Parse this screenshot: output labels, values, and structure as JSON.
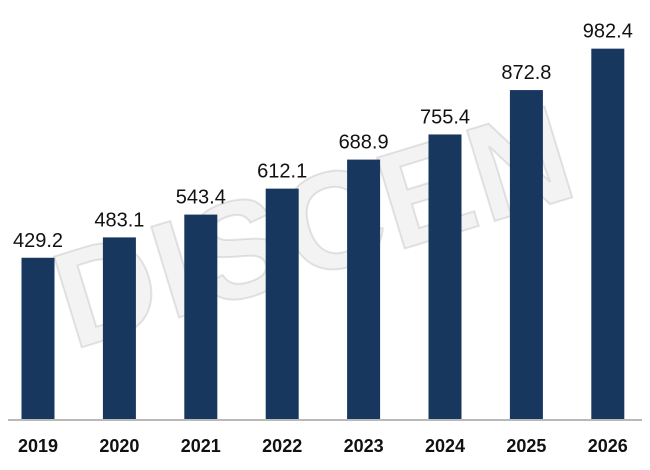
{
  "watermark": {
    "text": "DISCEN"
  },
  "chart_data": {
    "type": "bar",
    "categories": [
      "2019",
      "2020",
      "2021",
      "2022",
      "2023",
      "2024",
      "2025",
      "2026"
    ],
    "values": [
      429.2,
      483.1,
      543.4,
      612.1,
      688.9,
      755.4,
      872.8,
      982.4
    ],
    "value_labels": [
      "429.2",
      "483.1",
      "543.4",
      "612.1",
      "688.9",
      "755.4",
      "872.8",
      "982.4"
    ],
    "title": "",
    "xlabel": "",
    "ylabel": "",
    "ylim": [
      0,
      1000
    ],
    "grid": false,
    "legend": "none",
    "bar_color": "#17375e",
    "axis_color": "#b9b9b9"
  }
}
